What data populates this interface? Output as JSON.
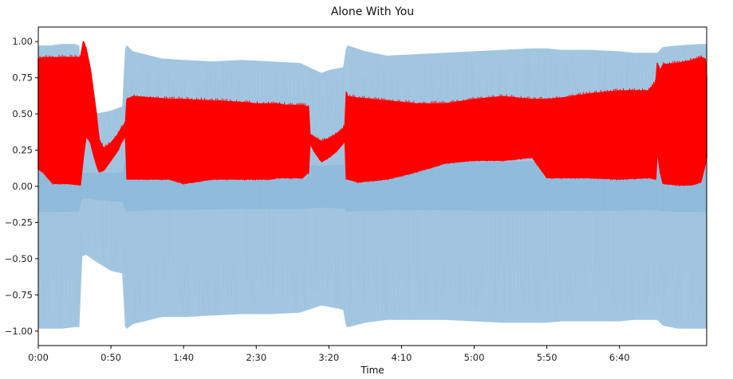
{
  "chart_data": {
    "type": "area",
    "title": "Alone With You",
    "xlabel": "Time",
    "ylabel": "",
    "xlim": [
      0,
      460
    ],
    "ylim": [
      -1.1,
      1.1
    ],
    "x_ticks": [
      0,
      50,
      100,
      150,
      200,
      250,
      300,
      350,
      400
    ],
    "x_tick_labels": [
      "0:00",
      "0:50",
      "1:40",
      "2:30",
      "3:20",
      "4:10",
      "5:00",
      "5:50",
      "6:40"
    ],
    "y_ticks": [
      1.0,
      0.75,
      0.5,
      0.25,
      0.0,
      -0.25,
      -0.5,
      -0.75,
      -1.0
    ],
    "y_tick_labels": [
      "1.00",
      "0.75",
      "0.50",
      "0.25",
      "0.00",
      "−0.25",
      "−0.50",
      "−0.75",
      "−1.00"
    ],
    "grid": false,
    "colors": {
      "waveform": "#a3c6e0",
      "waveform_center": "#7fb0d6",
      "envelope": "#ff0000"
    },
    "series": [
      {
        "type": "area",
        "x": [
          0,
          1,
          8,
          16,
          25,
          28,
          30,
          33,
          40,
          50,
          58,
          60,
          61,
          65,
          85,
          100,
          120,
          140,
          160,
          180,
          195,
          200,
          210,
          212,
          213,
          225,
          240,
          260,
          280,
          300,
          320,
          340,
          350,
          360,
          380,
          400,
          410,
          426,
          430,
          440,
          455,
          460
        ],
        "upper": [
          0.96,
          0.97,
          0.97,
          0.98,
          0.98,
          0.97,
          0.52,
          0.52,
          0.5,
          0.52,
          0.55,
          0.95,
          0.97,
          0.93,
          0.88,
          0.87,
          0.86,
          0.87,
          0.86,
          0.85,
          0.78,
          0.8,
          0.82,
          0.95,
          0.97,
          0.93,
          0.9,
          0.91,
          0.92,
          0.93,
          0.94,
          0.95,
          0.95,
          0.94,
          0.94,
          0.93,
          0.92,
          0.92,
          0.96,
          0.97,
          0.98,
          0.98
        ],
        "lower": [
          -0.98,
          -0.98,
          -0.98,
          -0.98,
          -0.97,
          -0.97,
          -0.48,
          -0.47,
          -0.52,
          -0.58,
          -0.6,
          -0.97,
          -0.98,
          -0.95,
          -0.9,
          -0.9,
          -0.89,
          -0.88,
          -0.88,
          -0.87,
          -0.82,
          -0.83,
          -0.85,
          -0.96,
          -0.97,
          -0.94,
          -0.92,
          -0.92,
          -0.92,
          -0.93,
          -0.94,
          -0.94,
          -0.94,
          -0.93,
          -0.93,
          -0.93,
          -0.92,
          -0.92,
          -0.96,
          -0.98,
          -0.98,
          -0.98
        ]
      },
      {
        "type": "line",
        "x": [
          0,
          3,
          10,
          20,
          29,
          31,
          33,
          36,
          38,
          40,
          41,
          42,
          45,
          50,
          55,
          57,
          59,
          60,
          61,
          65,
          80,
          90,
          100,
          120,
          140,
          150,
          160,
          165,
          170,
          175,
          182,
          185,
          186,
          187,
          190,
          195,
          200,
          205,
          210,
          211,
          212,
          213,
          220,
          240,
          260,
          280,
          300,
          320,
          340,
          350,
          360,
          380,
          400,
          420,
          425,
          426,
          428,
          430,
          440,
          450,
          456,
          459,
          460
        ],
        "upper": [
          0.88,
          0.89,
          0.89,
          0.89,
          0.89,
          1.0,
          0.95,
          0.8,
          0.65,
          0.5,
          0.4,
          0.32,
          0.26,
          0.3,
          0.36,
          0.4,
          0.42,
          0.44,
          0.6,
          0.62,
          0.61,
          0.6,
          0.6,
          0.59,
          0.58,
          0.57,
          0.57,
          0.57,
          0.56,
          0.56,
          0.56,
          0.55,
          0.55,
          0.36,
          0.34,
          0.31,
          0.33,
          0.36,
          0.4,
          0.42,
          0.65,
          0.62,
          0.61,
          0.59,
          0.57,
          0.57,
          0.6,
          0.62,
          0.6,
          0.6,
          0.61,
          0.64,
          0.66,
          0.66,
          0.72,
          0.85,
          0.8,
          0.84,
          0.85,
          0.87,
          0.89,
          0.88,
          0.75
        ],
        "lower": [
          0.12,
          0.1,
          0.02,
          0.02,
          0.01,
          0.2,
          0.35,
          0.3,
          0.22,
          0.15,
          0.12,
          0.1,
          0.11,
          0.18,
          0.25,
          0.3,
          0.33,
          0.36,
          0.05,
          0.05,
          0.05,
          0.05,
          0.02,
          0.05,
          0.05,
          0.05,
          0.05,
          0.06,
          0.06,
          0.06,
          0.06,
          0.09,
          0.09,
          0.3,
          0.24,
          0.17,
          0.2,
          0.24,
          0.3,
          0.33,
          0.05,
          0.05,
          0.03,
          0.05,
          0.1,
          0.16,
          0.18,
          0.18,
          0.2,
          0.06,
          0.06,
          0.06,
          0.05,
          0.06,
          0.05,
          0.25,
          0.1,
          0.02,
          0.01,
          0.01,
          0.03,
          0.15,
          0.2
        ]
      }
    ]
  }
}
